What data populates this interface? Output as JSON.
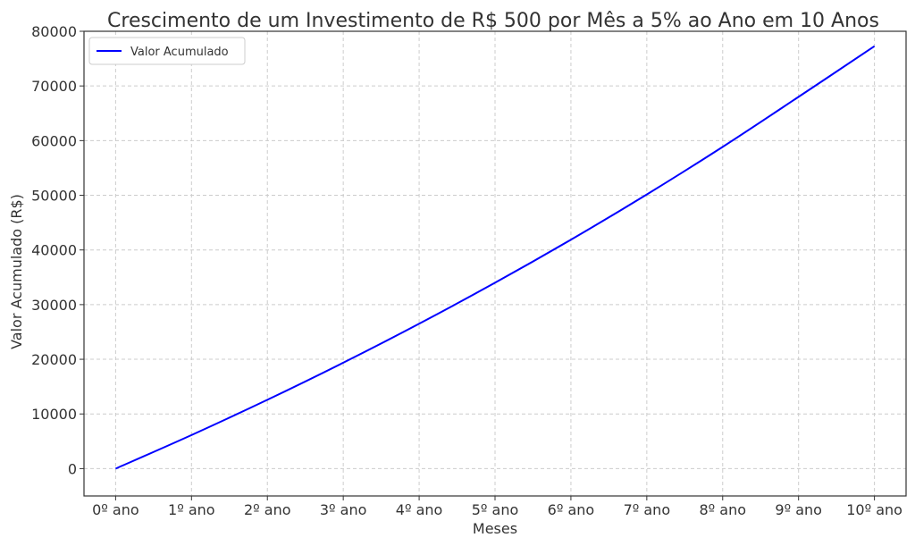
{
  "chart_data": {
    "type": "line",
    "title": "Crescimento de um Investimento de R$ 500 por Mês a 5% ao Ano em 10 Anos",
    "xlabel": "Meses",
    "ylabel": "Valor Acumulado (R$)",
    "x_tick_labels": [
      "0º ano",
      "1º ano",
      "2º ano",
      "3º ano",
      "4º ano",
      "5º ano",
      "6º ano",
      "7º ano",
      "8º ano",
      "9º ano",
      "10º ano"
    ],
    "xlim": [
      -5,
      125
    ],
    "ylim": [
      -5000,
      80000
    ],
    "y_ticks": [
      0,
      10000,
      20000,
      30000,
      40000,
      50000,
      60000,
      70000,
      80000
    ],
    "grid": true,
    "legend_position": "top-left",
    "series": [
      {
        "name": "Valor Acumulado",
        "color": "#0000ff",
        "x": [
          0,
          12,
          24,
          36,
          48,
          60,
          72,
          84,
          96,
          108,
          120
        ],
        "y": [
          0,
          6139,
          12592,
          19374,
          26503,
          33996,
          41873,
          50152,
          58855,
          68003,
          77271
        ]
      }
    ]
  }
}
